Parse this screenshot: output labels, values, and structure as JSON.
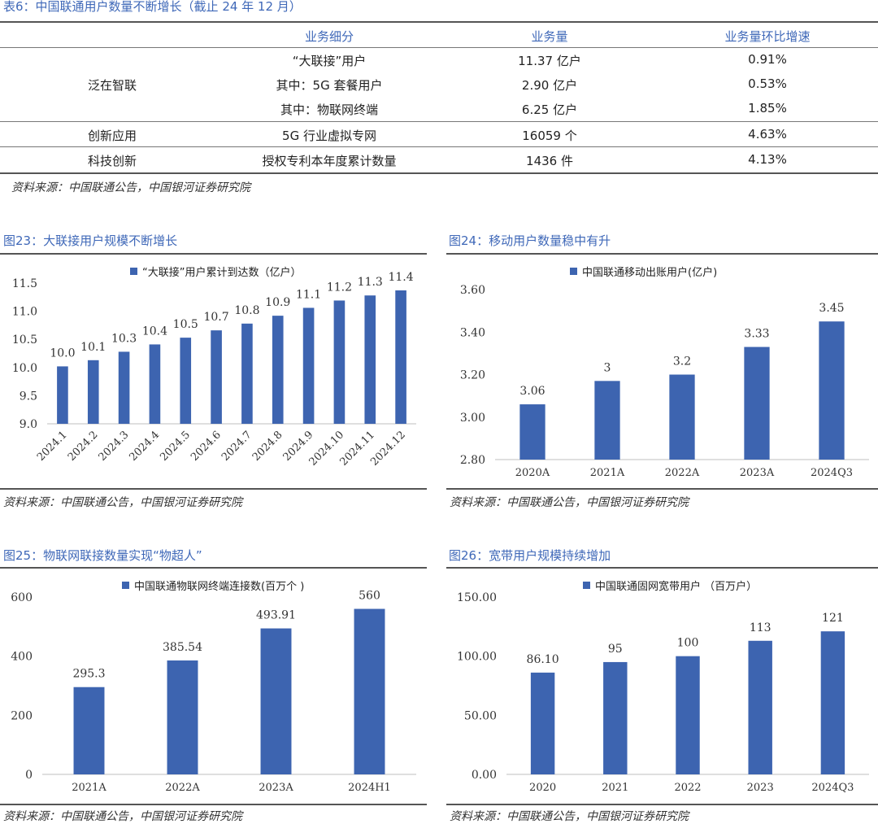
{
  "table6": {
    "caption": "表6：中国联通用户数量不断增长（截止 24 年 12 月）",
    "headers": [
      "业务细分",
      "业务量",
      "业务量环比增速"
    ],
    "groups": [
      {
        "name": "泛在智联",
        "rows": [
          {
            "item": "“大联接”用户",
            "volume": "11.37 亿户",
            "growth": "0.91%"
          },
          {
            "item": "其中：5G 套餐用户",
            "volume": "2.90 亿户",
            "growth": "0.53%"
          },
          {
            "item": "其中：物联网终端",
            "volume": "6.25 亿户",
            "growth": "1.85%"
          }
        ]
      },
      {
        "name": "创新应用",
        "rows": [
          {
            "item": "5G 行业虚拟专网",
            "volume": "16059 个",
            "growth": "4.63%"
          }
        ]
      },
      {
        "name": "科技创新",
        "rows": [
          {
            "item": "授权专利本年度累计数量",
            "volume": "1436 件",
            "growth": "4.13%"
          }
        ]
      }
    ],
    "source": "资料来源：中国联通公告，中国银河证券研究院"
  },
  "fig23": {
    "caption": "图23：大联接用户规模不断增长",
    "source": "资料来源：中国联通公告，中国银河证券研究院"
  },
  "fig24": {
    "caption": "图24：移动用户数量稳中有升",
    "source": "资料来源：中国联通公告，中国银河证券研究院"
  },
  "fig25": {
    "caption": "图25：物联网联接数量实现“物超人”",
    "source": "资料来源：中国联通公告，中国银河证券研究院"
  },
  "fig26": {
    "caption": "图26：宽带用户规模持续增加",
    "source": "资料来源：中国联通公告，中国银河证券研究院"
  },
  "colors": {
    "bar": "#3d64b0",
    "caption": "#3f68b8",
    "grid": "#d9d9d9"
  },
  "chart_data": [
    {
      "id": "fig23",
      "type": "bar",
      "title": "",
      "legend": "“大联接”用户累计到达数（亿户）",
      "categories": [
        "2024.1",
        "2024.2",
        "2024.3",
        "2024.4",
        "2024.5",
        "2024.6",
        "2024.7",
        "2024.8",
        "2024.9",
        "2024.10",
        "2024.11",
        "2024.12"
      ],
      "values": [
        10.02,
        10.13,
        10.28,
        10.41,
        10.53,
        10.66,
        10.78,
        10.92,
        11.06,
        11.19,
        11.28,
        11.37
      ],
      "labels": [
        "10.0",
        "10.1",
        "10.3",
        "10.4",
        "10.5",
        "10.7",
        "10.8",
        "10.9",
        "11.1",
        "11.2",
        "11.3",
        "11.4"
      ],
      "yticks": [
        "9.0",
        "9.5",
        "10.0",
        "10.5",
        "11.0",
        "11.5"
      ],
      "ylim": [
        9.0,
        11.5
      ],
      "grid": false,
      "xlabel_rotated": true
    },
    {
      "id": "fig24",
      "type": "bar",
      "title": "",
      "legend": "中国联通移动出账用户(亿户)",
      "categories": [
        "2020A",
        "2021A",
        "2022A",
        "2023A",
        "2024Q3"
      ],
      "values": [
        3.06,
        3.17,
        3.2,
        3.33,
        3.45
      ],
      "labels": [
        "3.06",
        "3",
        "3.2",
        "3.33",
        "3.45"
      ],
      "yticks": [
        "2.80",
        "3.00",
        "3.20",
        "3.40",
        "3.60"
      ],
      "ylim": [
        2.8,
        3.6
      ],
      "grid": false,
      "xlabel_rotated": false
    },
    {
      "id": "fig25",
      "type": "bar",
      "title": "",
      "legend": "中国联通物联网终端连接数(百万个 )",
      "categories": [
        "2021A",
        "2022A",
        "2023A",
        "2024H1"
      ],
      "values": [
        295.3,
        385.54,
        493.91,
        560
      ],
      "labels": [
        "295.3",
        "385.54",
        "493.91",
        "560"
      ],
      "yticks": [
        "0",
        "200",
        "400",
        "600"
      ],
      "ylim": [
        0,
        600
      ],
      "grid": false,
      "xlabel_rotated": false
    },
    {
      "id": "fig26",
      "type": "bar",
      "title": "",
      "legend": "中国联通固网宽带用户 （百万户）",
      "categories": [
        "2020",
        "2021",
        "2022",
        "2023",
        "2024Q3"
      ],
      "values": [
        86.1,
        95,
        100,
        113,
        121
      ],
      "labels": [
        "86.10",
        "95",
        "100",
        "113",
        "121"
      ],
      "yticks": [
        "0.00",
        "50.00",
        "100.00",
        "150.00"
      ],
      "ylim": [
        0,
        150
      ],
      "grid": false,
      "xlabel_rotated": false
    }
  ]
}
